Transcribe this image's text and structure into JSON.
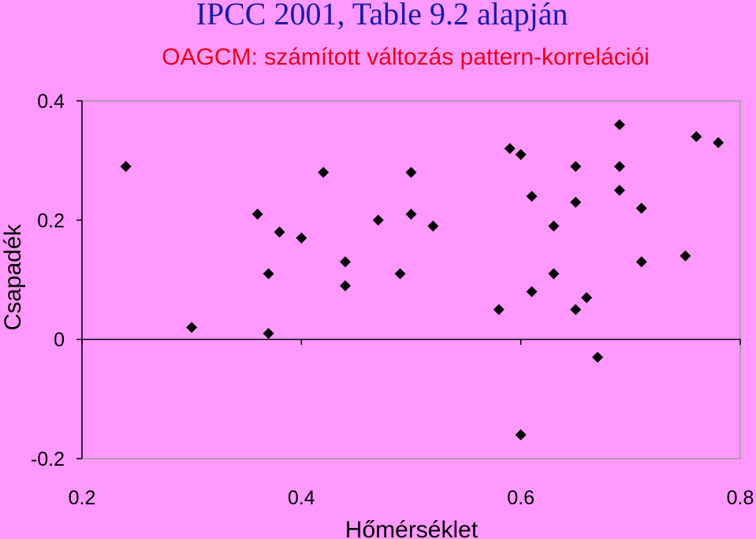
{
  "title": "IPCC 2001, Table 9.2 alapján",
  "subtitle": "OAGCM: számított változás pattern-korrelációi",
  "colors": {
    "background": "#FF99FF",
    "title": "#1a1aa8",
    "subtitle": "#e8001c",
    "marker": "#000000"
  },
  "chart_data": {
    "type": "scatter",
    "title": "IPCC 2001, Table 9.2 alapján",
    "subtitle": "OAGCM: számított változás pattern-korrelációi",
    "xlabel": "Hőmérséklet",
    "ylabel": "Csapadék",
    "xlim": [
      0.2,
      0.8
    ],
    "ylim": [
      -0.2,
      0.4
    ],
    "xticks": [
      "0.2",
      "0.4",
      "0.6",
      "0.8"
    ],
    "yticks": [
      "-0.2",
      "0",
      "0.2",
      "0.4"
    ],
    "grid": false,
    "marker": "diamond",
    "points": [
      [
        0.24,
        0.29
      ],
      [
        0.3,
        0.02
      ],
      [
        0.36,
        0.21
      ],
      [
        0.37,
        0.11
      ],
      [
        0.37,
        0.01
      ],
      [
        0.38,
        0.18
      ],
      [
        0.4,
        0.17
      ],
      [
        0.42,
        0.28
      ],
      [
        0.44,
        0.13
      ],
      [
        0.44,
        0.09
      ],
      [
        0.47,
        0.2
      ],
      [
        0.49,
        0.11
      ],
      [
        0.5,
        0.28
      ],
      [
        0.5,
        0.21
      ],
      [
        0.52,
        0.19
      ],
      [
        0.58,
        0.05
      ],
      [
        0.59,
        0.32
      ],
      [
        0.6,
        0.31
      ],
      [
        0.6,
        -0.16
      ],
      [
        0.61,
        0.24
      ],
      [
        0.61,
        0.08
      ],
      [
        0.63,
        0.19
      ],
      [
        0.63,
        0.11
      ],
      [
        0.65,
        0.29
      ],
      [
        0.65,
        0.23
      ],
      [
        0.65,
        0.05
      ],
      [
        0.66,
        0.07
      ],
      [
        0.67,
        -0.03
      ],
      [
        0.69,
        0.36
      ],
      [
        0.69,
        0.29
      ],
      [
        0.69,
        0.25
      ],
      [
        0.71,
        0.22
      ],
      [
        0.71,
        0.13
      ],
      [
        0.75,
        0.14
      ],
      [
        0.76,
        0.34
      ],
      [
        0.78,
        0.33
      ]
    ]
  }
}
